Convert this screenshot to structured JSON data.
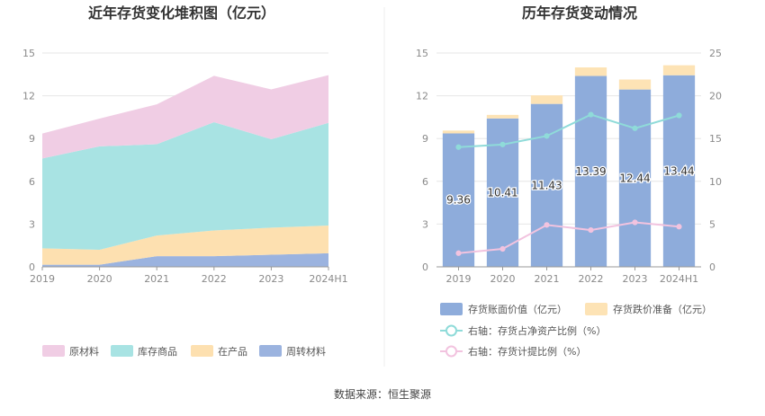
{
  "chart_data": [
    {
      "type": "area",
      "stacked": true,
      "title": "近年存货变化堆积图（亿元）",
      "categories": [
        "2019",
        "2020",
        "2021",
        "2022",
        "2023",
        "2024H1"
      ],
      "ylim": [
        0,
        15
      ],
      "yticks": [
        0,
        3,
        6,
        9,
        12,
        15
      ],
      "legend_position": "bottom",
      "series": [
        {
          "name": "周转材料",
          "color": "#9bb3df",
          "values": [
            0.15,
            0.15,
            0.75,
            0.75,
            0.85,
            0.95
          ]
        },
        {
          "name": "在产品",
          "color": "#fde0b0",
          "values": [
            1.15,
            1.05,
            1.45,
            1.8,
            1.9,
            1.95
          ]
        },
        {
          "name": "库存商品",
          "color": "#a8e3e3",
          "values": [
            6.3,
            7.25,
            6.4,
            7.6,
            6.2,
            7.2
          ]
        },
        {
          "name": "原材料",
          "color": "#f0cde4",
          "values": [
            1.75,
            1.95,
            2.8,
            3.25,
            3.5,
            3.35
          ]
        }
      ]
    },
    {
      "type": "bar",
      "stacked": true,
      "title": "历年存货变动情况",
      "categories": [
        "2019",
        "2020",
        "2021",
        "2022",
        "2023",
        "2024H1"
      ],
      "ylim": [
        0,
        15
      ],
      "yticks": [
        0,
        3,
        6,
        9,
        12,
        15
      ],
      "y2lim": [
        0,
        25
      ],
      "y2ticks": [
        0,
        5,
        10,
        15,
        20,
        25
      ],
      "legend_position": "bottom",
      "series": [
        {
          "name": "存货账面价值（亿元）",
          "type": "bar",
          "color": "#8eacdb",
          "values": [
            9.36,
            10.41,
            11.43,
            13.39,
            12.44,
            13.44
          ],
          "labels": [
            "9.36",
            "10.41",
            "11.43",
            "13.39",
            "12.44",
            "13.44"
          ]
        },
        {
          "name": "存货跌价准备（亿元）",
          "type": "bar",
          "color": "#fde3b5",
          "values": [
            0.2,
            0.25,
            0.6,
            0.6,
            0.7,
            0.7
          ]
        },
        {
          "name": "右轴：存货占净资产比例（%）",
          "type": "line",
          "axis": "right",
          "color": "#8fdbd9",
          "values": [
            14.0,
            14.3,
            15.3,
            17.8,
            16.2,
            17.7
          ]
        },
        {
          "name": "右轴：存货计提比例（%）",
          "type": "line",
          "axis": "right",
          "color": "#f2c3df",
          "values": [
            1.6,
            2.1,
            4.9,
            4.3,
            5.2,
            4.7
          ]
        }
      ]
    }
  ],
  "footer": {
    "source": "数据来源：恒生聚源"
  }
}
